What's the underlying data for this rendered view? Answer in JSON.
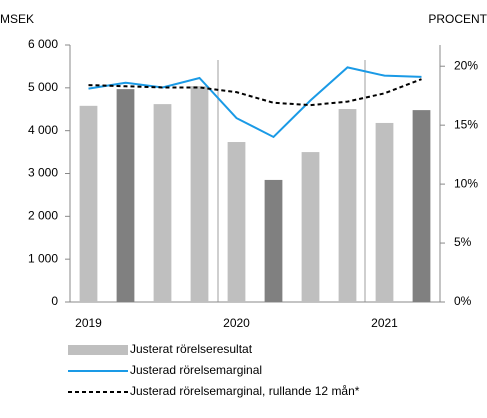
{
  "chart_data": {
    "type": "bar_line",
    "ylabel": "MSEK",
    "y2label": "PROCENT",
    "categories": [
      "2019",
      null,
      null,
      null,
      "2020",
      null,
      null,
      null,
      "2021",
      null
    ],
    "series": [
      {
        "name": "Justerat rörelseresultat",
        "type": "bar",
        "color": "#bfbfbf",
        "colors": [
          "#bfbfbf",
          "#808080",
          "#bfbfbf",
          "#bfbfbf",
          "#bfbfbf",
          "#808080",
          "#bfbfbf",
          "#bfbfbf",
          "#bfbfbf",
          "#808080"
        ],
        "values": [
          4580,
          4970,
          4620,
          5040,
          3735,
          2850,
          3500,
          4505,
          4180,
          4480
        ]
      },
      {
        "name": "Justerad rörelsemarginal",
        "type": "line",
        "axis": "y2",
        "color": "#1a9ae6",
        "values": [
          18.1,
          18.6,
          18.2,
          19.0,
          15.6,
          14.0,
          17.1,
          19.9,
          19.2,
          19.1
        ]
      },
      {
        "name": "Justerad rörelsemarginal, rullande 12 mån*",
        "type": "line",
        "axis": "y2",
        "color": "#000000",
        "dashed": true,
        "values": [
          18.4,
          18.3,
          18.2,
          18.2,
          17.8,
          16.9,
          16.7,
          17.0,
          17.7,
          18.9
        ]
      }
    ],
    "ylim": [
      0,
      6000
    ],
    "yticks": [
      0,
      {
        "value": 1000,
        "label": "1 000"
      },
      {
        "value": 2000,
        "label": "2 000"
      },
      {
        "value": 3000,
        "label": "3 000"
      },
      {
        "value": 4000,
        "label": "4 000"
      },
      {
        "value": 5000,
        "label": "5 000"
      },
      {
        "value": 6000,
        "label": "6 000"
      }
    ],
    "y2lim": [
      0,
      21.8
    ],
    "y2ticks": [
      {
        "value": 0,
        "label": "0%"
      },
      {
        "value": 5,
        "label": "5%"
      },
      {
        "value": 10,
        "label": "10%"
      },
      {
        "value": 15,
        "label": "15%"
      },
      {
        "value": 20,
        "label": "20%"
      }
    ]
  }
}
